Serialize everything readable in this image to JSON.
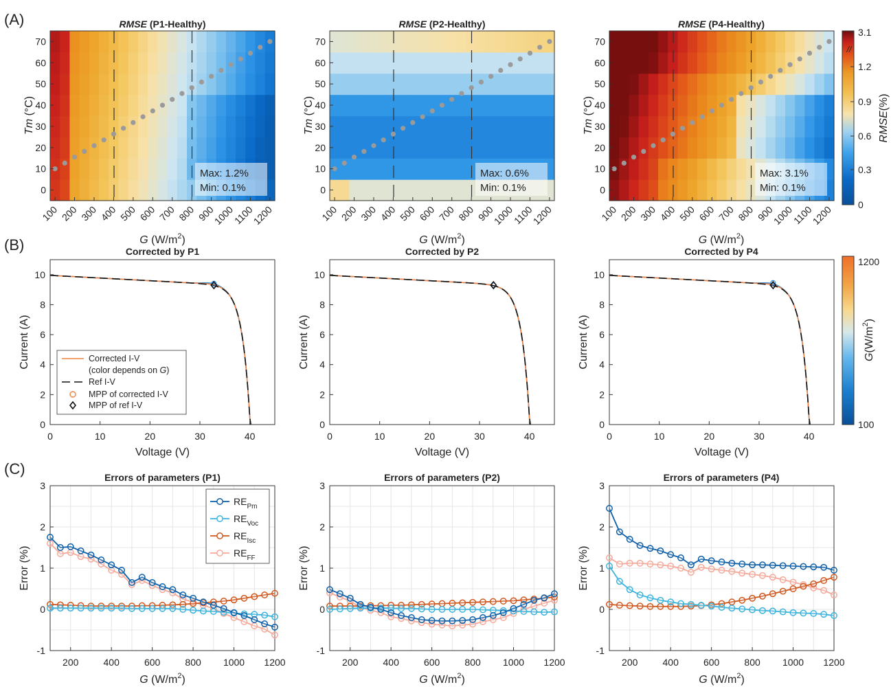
{
  "colors": {
    "series": [
      "#0d5fa8",
      "#3bb3dd",
      "#d0571e",
      "#f4a99a"
    ],
    "dots": "#9a9a9a",
    "heat": [
      "#0a4f98",
      "#0a6bc8",
      "#2d94e6",
      "#7fc3ee",
      "#cfe6f0",
      "#f7e1a8",
      "#f3c65b",
      "#eda52b",
      "#e9861c",
      "#e2541a",
      "#c81f1c",
      "#6e0d0d"
    ],
    "iv_measured": "#3a8fd8",
    "iv_corrected": "#f08040"
  },
  "panels": {
    "A": "(A)",
    "B": "(B)",
    "C": "(C)"
  },
  "heatmaps": [
    {
      "title_italic": "RMSE",
      "title_rest": " (P1-Healthy)",
      "max_text": "Max: 1.2%",
      "min_text": "Min: 0.1%",
      "ylabel_italic": "Tm",
      "ylabel_rest": " (°C)",
      "xlabel_italic": "G",
      "xlabel_rest": " (W/m",
      "xlabel_sup": "2",
      "xlabel_close": ")"
    },
    {
      "title_italic": "RMSE",
      "title_rest": " (P2-Healthy)",
      "max_text": "Max: 0.6%",
      "min_text": "Min: 0.1%",
      "ylabel_italic": "Tm",
      "ylabel_rest": " (°C)",
      "xlabel_italic": "G",
      "xlabel_rest": " (W/m",
      "xlabel_sup": "2",
      "xlabel_close": ")"
    },
    {
      "title_italic": "RMSE",
      "title_rest": " (P4-Healthy)",
      "max_text": "Max: 3.1%",
      "min_text": "Min: 0.1%",
      "ylabel_italic": "Tm",
      "ylabel_rest": " (°C)",
      "xlabel_italic": "G",
      "xlabel_rest": " (W/m",
      "xlabel_sup": "2",
      "xlabel_close": ")"
    }
  ],
  "heat_xticks": [
    "100",
    "200",
    "300",
    "400",
    "500",
    "600",
    "700",
    "800",
    "900",
    "1000",
    "1100",
    "1200"
  ],
  "heat_yticks": [
    "0",
    "10",
    "20",
    "30",
    "40",
    "50",
    "60",
    "70"
  ],
  "colorbar_a": {
    "ticks": [
      "0",
      "0.3",
      "0.6",
      "0.9",
      "1.2",
      "3.1"
    ],
    "label_italic": "RMSE",
    "label_rest": "(%)",
    "break_mark": "//"
  },
  "colorbar_b": {
    "top": "1200",
    "bottom": "100",
    "label_italic": "G",
    "label_rest": "(W/m",
    "label_sup": "2",
    "label_close": ")"
  },
  "iv_plots": [
    {
      "title": "Corrected by P1",
      "xlabel": "Voltage (V)",
      "ylabel": "Current (A)"
    },
    {
      "title": "Corrected by P2",
      "xlabel": "Voltage (V)",
      "ylabel": "Current (A)"
    },
    {
      "title": "Corrected by P4",
      "xlabel": "Voltage (V)",
      "ylabel": "Current (A)"
    }
  ],
  "iv_xticks": [
    "0",
    "10",
    "20",
    "30",
    "40"
  ],
  "iv_yticks": [
    "0",
    "2",
    "4",
    "6",
    "8",
    "10"
  ],
  "legend_b": {
    "corrected": "Corrected I-V",
    "corrected_note_pre": "(color depends on ",
    "corrected_note_g": "G",
    "corrected_note_post": ")",
    "ref": "Ref I-V",
    "mpp_corr": "MPP of corrected I-V",
    "mpp_ref": "MPP of ref I-V"
  },
  "err_plots": [
    {
      "title": "Errors of parameters (P1)",
      "ylabel": "Error (%)",
      "xlabel_italic": "G",
      "xlabel_rest": " (W/m",
      "xlabel_sup": "2",
      "xlabel_close": ")"
    },
    {
      "title": "Errors of parameters (P2)",
      "ylabel": "Error (%)",
      "xlabel_italic": "G",
      "xlabel_rest": " (W/m",
      "xlabel_sup": "2",
      "xlabel_close": ")"
    },
    {
      "title": "Errors of parameters (P4)",
      "ylabel": "Error (%)",
      "xlabel_italic": "G",
      "xlabel_rest": " (W/m",
      "xlabel_sup": "2",
      "xlabel_close": ")"
    }
  ],
  "err_xticks": [
    "200",
    "400",
    "600",
    "800",
    "1000",
    "1200"
  ],
  "err_yticks": [
    "-1",
    "0",
    "1",
    "2",
    "3"
  ],
  "legend_c": [
    {
      "base": "RE",
      "sub": "Pm"
    },
    {
      "base": "RE",
      "sub": "Voc"
    },
    {
      "base": "RE",
      "sub": "Isc"
    },
    {
      "base": "RE",
      "sub": "FF"
    }
  ],
  "chart_data": [
    {
      "type": "heatmap",
      "title": "RMSE (P1-Healthy)",
      "xlabel": "G (W/m2)",
      "ylabel": "Tm (°C)",
      "x": [
        100,
        150,
        200,
        250,
        300,
        350,
        400,
        450,
        500,
        550,
        600,
        650,
        700,
        750,
        800,
        850,
        900,
        950,
        1000,
        1050,
        1100,
        1150,
        1200
      ],
      "y": [
        0,
        10,
        20,
        30,
        40,
        50,
        60,
        70
      ],
      "xlim": [
        75,
        1225
      ],
      "ylim": [
        -5,
        75
      ],
      "dashed_lines_x": [
        400,
        800
      ],
      "dots": [
        [
          100,
          10
        ],
        [
          150,
          12.7
        ],
        [
          200,
          15.5
        ],
        [
          250,
          18.2
        ],
        [
          300,
          20.9
        ],
        [
          350,
          23.6
        ],
        [
          400,
          26.4
        ],
        [
          450,
          29.1
        ],
        [
          500,
          31.8
        ],
        [
          550,
          34.5
        ],
        [
          600,
          37.3
        ],
        [
          650,
          40
        ],
        [
          700,
          42.7
        ],
        [
          750,
          45.5
        ],
        [
          800,
          48.2
        ],
        [
          850,
          50.9
        ],
        [
          900,
          53.6
        ],
        [
          950,
          56.4
        ],
        [
          1000,
          59.1
        ],
        [
          1050,
          61.8
        ],
        [
          1100,
          64.5
        ],
        [
          1150,
          67.3
        ],
        [
          1200,
          70
        ]
      ],
      "max": 1.2,
      "min": 0.1
    },
    {
      "type": "heatmap",
      "title": "RMSE (P2-Healthy)",
      "xlabel": "G (W/m2)",
      "ylabel": "Tm (°C)",
      "x": [
        100,
        150,
        200,
        250,
        300,
        350,
        400,
        450,
        500,
        550,
        600,
        650,
        700,
        750,
        800,
        850,
        900,
        950,
        1000,
        1050,
        1100,
        1150,
        1200
      ],
      "y": [
        0,
        10,
        20,
        30,
        40,
        50,
        60,
        70
      ],
      "xlim": [
        75,
        1225
      ],
      "ylim": [
        -5,
        75
      ],
      "dashed_lines_x": [
        400,
        800
      ],
      "max": 0.6,
      "min": 0.1
    },
    {
      "type": "heatmap",
      "title": "RMSE (P4-Healthy)",
      "xlabel": "G (W/m2)",
      "ylabel": "Tm (°C)",
      "x": [
        100,
        150,
        200,
        250,
        300,
        350,
        400,
        450,
        500,
        550,
        600,
        650,
        700,
        750,
        800,
        850,
        900,
        950,
        1000,
        1050,
        1100,
        1150,
        1200
      ],
      "y": [
        0,
        10,
        20,
        30,
        40,
        50,
        60,
        70
      ],
      "xlim": [
        75,
        1225
      ],
      "ylim": [
        -5,
        75
      ],
      "dashed_lines_x": [
        400,
        800
      ],
      "max": 3.1,
      "min": 0.1,
      "colorbar": {
        "ticks": [
          0,
          0.3,
          0.6,
          0.9,
          1.2,
          3.1
        ],
        "label": "RMSE(%)"
      }
    },
    {
      "type": "line",
      "title": "Corrected by P1",
      "xlabel": "Voltage (V)",
      "ylabel": "Current (A)",
      "xlim": [
        0,
        45
      ],
      "ylim": [
        0,
        11
      ],
      "isc": 9.95,
      "voc": 40.2,
      "mpp_ref": [
        32.8,
        9.3
      ],
      "mpp_corrected": [
        32.8,
        9.4
      ],
      "series": [
        {
          "name": "Corrected I-V",
          "kind": "solid"
        },
        {
          "name": "Ref I-V",
          "kind": "dashed"
        }
      ]
    },
    {
      "type": "line",
      "title": "Corrected by P2",
      "xlabel": "Voltage (V)",
      "ylabel": "Current (A)",
      "xlim": [
        0,
        45
      ],
      "ylim": [
        0,
        11
      ],
      "isc": 9.95,
      "voc": 40.2,
      "mpp_ref": [
        32.8,
        9.3
      ],
      "mpp_corrected": [
        32.8,
        9.3
      ]
    },
    {
      "type": "line",
      "title": "Corrected by P4",
      "xlabel": "Voltage (V)",
      "ylabel": "Current (A)",
      "xlim": [
        0,
        45
      ],
      "ylim": [
        0,
        11
      ],
      "isc": 9.95,
      "voc": 40.2,
      "mpp_ref": [
        32.8,
        9.3
      ],
      "mpp_corrected": [
        32.8,
        9.45
      ],
      "colorbar": {
        "min": 100,
        "max": 1200,
        "label": "G(W/m2)"
      }
    },
    {
      "type": "line",
      "title": "Errors of parameters (P1)",
      "xlabel": "G (W/m2)",
      "ylabel": "Error (%)",
      "x": [
        100,
        150,
        200,
        250,
        300,
        350,
        400,
        450,
        500,
        550,
        600,
        650,
        700,
        750,
        800,
        850,
        900,
        950,
        1000,
        1050,
        1100,
        1150,
        1200
      ],
      "xlim": [
        100,
        1200
      ],
      "ylim": [
        -1,
        3
      ],
      "series": [
        {
          "name": "REPm",
          "values": [
            1.75,
            1.5,
            1.52,
            1.42,
            1.32,
            1.2,
            1.08,
            0.95,
            0.65,
            0.78,
            0.65,
            0.55,
            0.48,
            0.35,
            0.27,
            0.18,
            0.1,
            0.02,
            -0.08,
            -0.15,
            -0.25,
            -0.35,
            -0.43
          ]
        },
        {
          "name": "REVoc",
          "values": [
            0.03,
            0.03,
            0.03,
            0.03,
            0.03,
            0.03,
            0.03,
            0.03,
            0.02,
            0.02,
            0.02,
            0.02,
            0.02,
            0.0,
            -0.02,
            -0.04,
            -0.05,
            -0.07,
            -0.09,
            -0.11,
            -0.12,
            -0.14,
            -0.18
          ]
        },
        {
          "name": "REIsc",
          "values": [
            0.12,
            0.11,
            0.1,
            0.09,
            0.08,
            0.08,
            0.08,
            0.08,
            0.08,
            0.09,
            0.09,
            0.1,
            0.11,
            0.12,
            0.14,
            0.16,
            0.18,
            0.2,
            0.23,
            0.27,
            0.31,
            0.35,
            0.39
          ]
        },
        {
          "name": "REFF",
          "values": [
            1.6,
            1.35,
            1.38,
            1.28,
            1.22,
            1.1,
            0.95,
            0.85,
            0.6,
            0.7,
            0.58,
            0.48,
            0.4,
            0.25,
            0.18,
            0.1,
            0.02,
            -0.1,
            -0.2,
            -0.3,
            -0.4,
            -0.48,
            -0.62
          ]
        }
      ]
    },
    {
      "type": "line",
      "title": "Errors of parameters (P2)",
      "xlabel": "G (W/m2)",
      "ylabel": "Error (%)",
      "x": [
        100,
        150,
        200,
        250,
        300,
        350,
        400,
        450,
        500,
        550,
        600,
        650,
        700,
        750,
        800,
        850,
        900,
        950,
        1000,
        1050,
        1100,
        1150,
        1200
      ],
      "xlim": [
        100,
        1200
      ],
      "ylim": [
        -1,
        3
      ],
      "series": [
        {
          "name": "REPm",
          "values": [
            0.48,
            0.38,
            0.27,
            0.12,
            0.05,
            0.0,
            -0.08,
            -0.15,
            -0.2,
            -0.25,
            -0.27,
            -0.28,
            -0.28,
            -0.27,
            -0.25,
            -0.2,
            -0.15,
            -0.08,
            0.02,
            0.12,
            0.22,
            0.28,
            0.38
          ]
        },
        {
          "name": "REVoc",
          "values": [
            0.0,
            0.01,
            0.02,
            0.03,
            0.03,
            0.03,
            0.03,
            0.02,
            0.02,
            0.01,
            0.0,
            0.0,
            0.0,
            0.0,
            0.0,
            -0.01,
            -0.02,
            -0.03,
            -0.04,
            -0.05,
            -0.06,
            -0.07,
            -0.06
          ]
        },
        {
          "name": "REIsc",
          "values": [
            0.08,
            0.08,
            0.08,
            0.08,
            0.09,
            0.09,
            0.1,
            0.1,
            0.11,
            0.12,
            0.13,
            0.14,
            0.15,
            0.16,
            0.17,
            0.18,
            0.19,
            0.2,
            0.21,
            0.23,
            0.25,
            0.27,
            0.3
          ]
        },
        {
          "name": "REFF",
          "values": [
            0.4,
            0.3,
            0.2,
            0.05,
            -0.02,
            -0.08,
            -0.18,
            -0.22,
            -0.28,
            -0.32,
            -0.36,
            -0.38,
            -0.4,
            -0.38,
            -0.36,
            -0.3,
            -0.25,
            -0.2,
            -0.1,
            0.0,
            0.08,
            0.15,
            0.22
          ]
        }
      ]
    },
    {
      "type": "line",
      "title": "Errors of parameters (P4)",
      "xlabel": "G (W/m2)",
      "ylabel": "Error (%)",
      "x": [
        100,
        150,
        200,
        250,
        300,
        350,
        400,
        450,
        500,
        550,
        600,
        650,
        700,
        750,
        800,
        850,
        900,
        950,
        1000,
        1050,
        1100,
        1150,
        1200
      ],
      "xlim": [
        100,
        1200
      ],
      "ylim": [
        -1,
        3
      ],
      "series": [
        {
          "name": "REPm",
          "values": [
            2.45,
            1.88,
            1.7,
            1.55,
            1.48,
            1.42,
            1.33,
            1.25,
            1.08,
            1.22,
            1.18,
            1.15,
            1.12,
            1.1,
            1.08,
            1.08,
            1.07,
            1.06,
            1.05,
            1.04,
            1.03,
            1.02,
            0.95
          ]
        },
        {
          "name": "REVoc",
          "values": [
            1.05,
            0.68,
            0.48,
            0.35,
            0.28,
            0.22,
            0.18,
            0.14,
            0.12,
            0.1,
            0.08,
            0.05,
            0.03,
            0.01,
            -0.01,
            -0.03,
            -0.04,
            -0.06,
            -0.08,
            -0.09,
            -0.1,
            -0.12,
            -0.15
          ]
        },
        {
          "name": "REIsc",
          "values": [
            0.12,
            0.1,
            0.09,
            0.08,
            0.07,
            0.07,
            0.07,
            0.07,
            0.08,
            0.09,
            0.11,
            0.14,
            0.18,
            0.22,
            0.27,
            0.32,
            0.38,
            0.44,
            0.5,
            0.56,
            0.62,
            0.7,
            0.78
          ]
        },
        {
          "name": "REFF",
          "values": [
            1.25,
            1.1,
            1.12,
            1.12,
            1.1,
            1.08,
            1.05,
            1.0,
            0.9,
            1.02,
            0.98,
            0.95,
            0.92,
            0.88,
            0.85,
            0.82,
            0.78,
            0.72,
            0.66,
            0.6,
            0.52,
            0.46,
            0.35
          ]
        }
      ]
    }
  ]
}
